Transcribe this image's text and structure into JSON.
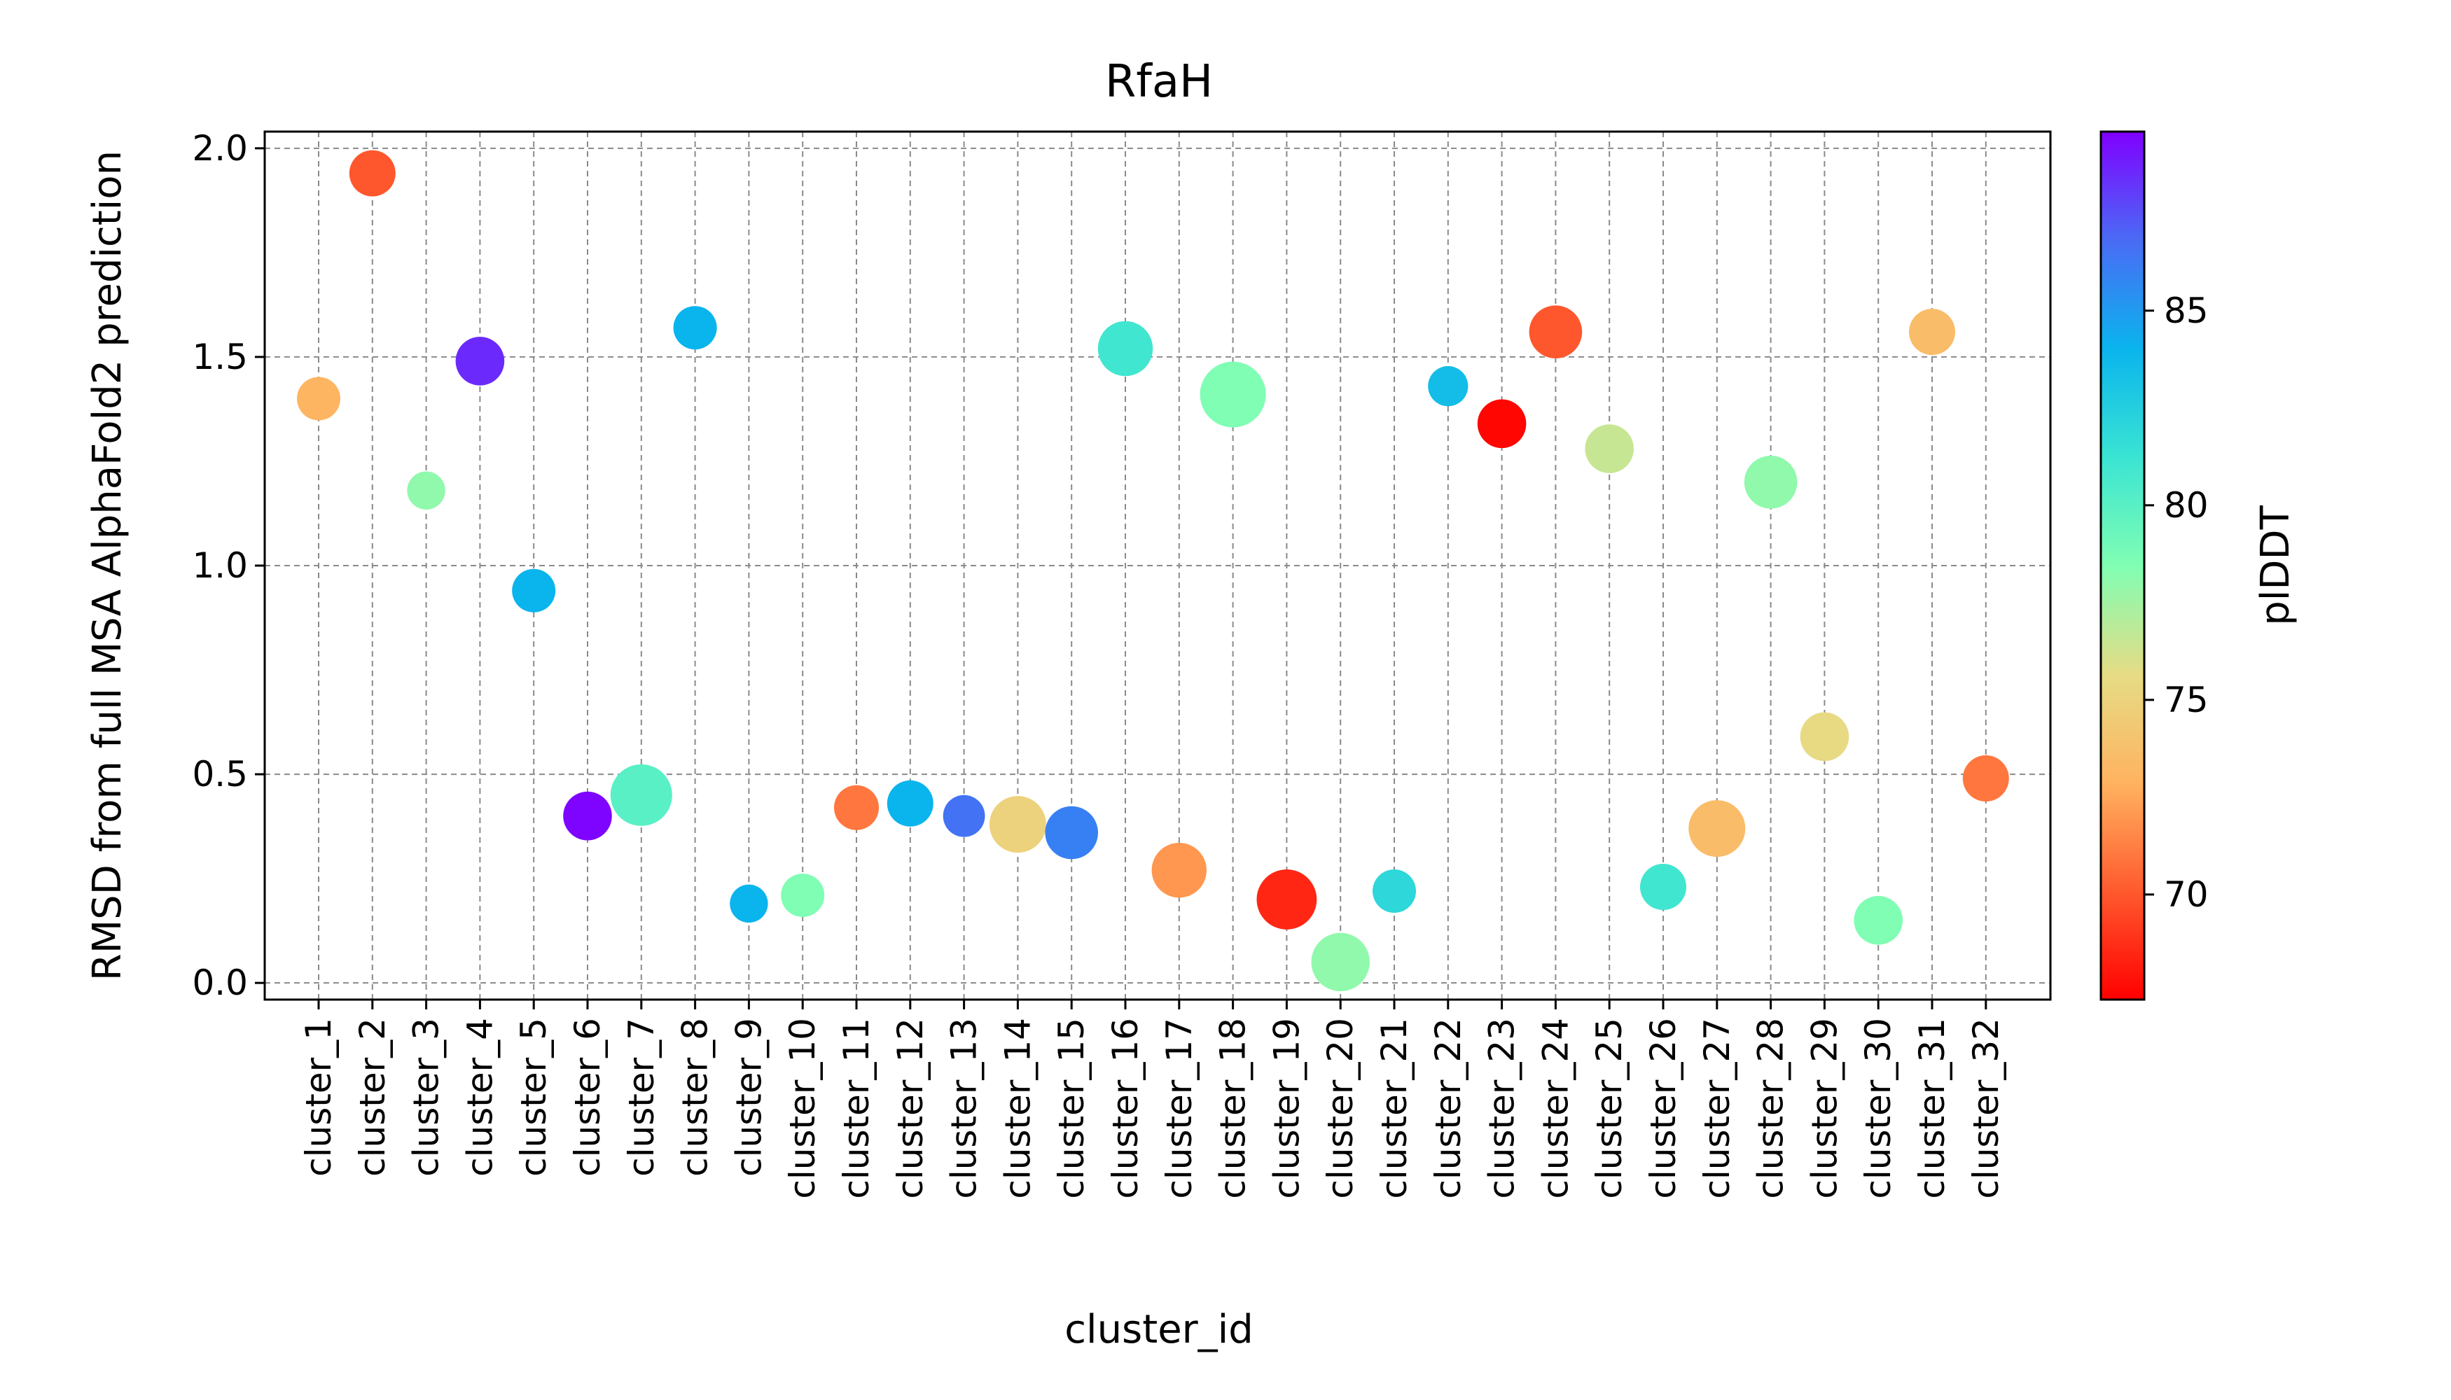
{
  "chart_data": {
    "type": "scatter",
    "title": "RfaH",
    "xlabel": "cluster_id",
    "ylabel": "RMSD from full MSA AlphaFold2 prediction",
    "ylim": [
      -0.04,
      2.04
    ],
    "yticks": [
      0.0,
      0.5,
      1.0,
      1.5,
      2.0
    ],
    "ytick_labels": [
      "0.0",
      "0.5",
      "1.0",
      "1.5",
      "2.0"
    ],
    "grid": true,
    "categories": [
      "cluster_1",
      "cluster_2",
      "cluster_3",
      "cluster_4",
      "cluster_5",
      "cluster_6",
      "cluster_7",
      "cluster_8",
      "cluster_9",
      "cluster_10",
      "cluster_11",
      "cluster_12",
      "cluster_13",
      "cluster_14",
      "cluster_15",
      "cluster_16",
      "cluster_17",
      "cluster_18",
      "cluster_19",
      "cluster_20",
      "cluster_21",
      "cluster_22",
      "cluster_23",
      "cluster_24",
      "cluster_25",
      "cluster_26",
      "cluster_27",
      "cluster_28",
      "cluster_29",
      "cluster_30",
      "cluster_31",
      "cluster_32"
    ],
    "y": [
      1.4,
      1.94,
      1.18,
      1.49,
      0.94,
      0.4,
      0.45,
      1.57,
      0.19,
      0.21,
      0.42,
      0.43,
      0.4,
      0.38,
      0.36,
      1.52,
      0.27,
      1.41,
      0.2,
      0.05,
      0.22,
      1.43,
      1.34,
      1.56,
      1.28,
      0.23,
      0.37,
      1.2,
      0.59,
      0.15,
      1.56,
      0.49
    ],
    "plddt": [
      73.0,
      70.0,
      78.0,
      88.5,
      84.0,
      89.5,
      80.0,
      84.0,
      84.0,
      78.5,
      71.0,
      84.0,
      86.5,
      75.0,
      86.0,
      81.0,
      72.0,
      78.5,
      68.5,
      78.0,
      82.0,
      83.5,
      67.5,
      70.0,
      76.5,
      81.0,
      73.5,
      78.0,
      75.5,
      78.5,
      73.5,
      71.0
    ],
    "size_weight": [
      3,
      4,
      1.5,
      5,
      3,
      5,
      12,
      3,
      1.5,
      3,
      3.5,
      4,
      2.5,
      9,
      7,
      8,
      8,
      15,
      11,
      10,
      3,
      2,
      5,
      7,
      5,
      4,
      9,
      7,
      5,
      5,
      4,
      4
    ],
    "colorbar": {
      "label": "plDDT",
      "min": 67.3,
      "max": 89.6,
      "ticks": [
        70,
        75,
        80,
        85
      ],
      "tick_labels": [
        "70",
        "75",
        "80",
        "85"
      ],
      "colormap": "rainbow"
    }
  }
}
